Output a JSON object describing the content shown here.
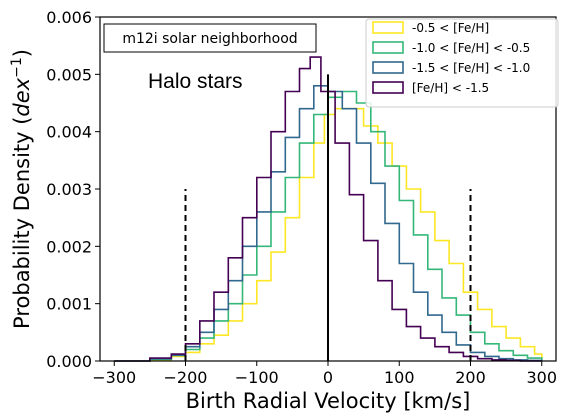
{
  "chart_data": {
    "type": "line",
    "xlabel": "Birth Radial Velocity [km/s]",
    "ylabel_prefix": "Probability Density (",
    "ylabel_unit": "dex",
    "ylabel_exp": "−1",
    "ylabel_suffix": ")",
    "xlim": [
      -320,
      320
    ],
    "ylim": [
      0,
      0.006
    ],
    "xticks": [
      -300,
      -200,
      -100,
      0,
      100,
      200,
      300
    ],
    "xtick_labels": [
      "−300",
      "−200",
      "−100",
      "0",
      "100",
      "200",
      "300"
    ],
    "yticks": [
      0,
      0.001,
      0.002,
      0.003,
      0.004,
      0.005,
      0.006
    ],
    "ytick_labels": [
      "0.000",
      "0.001",
      "0.002",
      "0.003",
      "0.004",
      "0.005",
      "0.006"
    ],
    "grid": false,
    "legend_position": "top-right",
    "annotations": {
      "boxed_label": "m12i solar neighborhood",
      "text_label": "Halo stars"
    },
    "vertical_lines": [
      {
        "x": 0,
        "y_top": 0.005,
        "style": "solid"
      },
      {
        "x": -200,
        "y_top": 0.003,
        "style": "dashed"
      },
      {
        "x": 200,
        "y_top": 0.003,
        "style": "dashed"
      }
    ],
    "series": [
      {
        "name": "-0.5 < [Fe/H]",
        "color": "#fde725",
        "points": [
          [
            -300,
            0
          ],
          [
            -250,
            2e-05
          ],
          [
            -220,
            8e-05
          ],
          [
            -200,
            0.00015
          ],
          [
            -180,
            0.0003
          ],
          [
            -160,
            0.00045
          ],
          [
            -140,
            0.0007
          ],
          [
            -120,
            0.001
          ],
          [
            -100,
            0.0014
          ],
          [
            -80,
            0.0019
          ],
          [
            -60,
            0.0025
          ],
          [
            -40,
            0.0032
          ],
          [
            -20,
            0.0038
          ],
          [
            -5,
            0.0043
          ],
          [
            10,
            0.0044
          ],
          [
            30,
            0.0044
          ],
          [
            50,
            0.0041
          ],
          [
            70,
            0.0038
          ],
          [
            90,
            0.0034
          ],
          [
            110,
            0.003
          ],
          [
            130,
            0.0026
          ],
          [
            150,
            0.0021
          ],
          [
            170,
            0.0017
          ],
          [
            190,
            0.0012
          ],
          [
            210,
            0.0009
          ],
          [
            230,
            0.0006
          ],
          [
            250,
            0.0004
          ],
          [
            270,
            0.00025
          ],
          [
            290,
            0.00012
          ],
          [
            300,
            5e-05
          ]
        ]
      },
      {
        "name": "-1.0 < [Fe/H] < -0.5",
        "color": "#35b779",
        "points": [
          [
            -300,
            0
          ],
          [
            -250,
            3e-05
          ],
          [
            -220,
            0.0001
          ],
          [
            -200,
            0.0002
          ],
          [
            -180,
            0.0004
          ],
          [
            -160,
            0.0007
          ],
          [
            -140,
            0.001
          ],
          [
            -120,
            0.0015
          ],
          [
            -100,
            0.002
          ],
          [
            -80,
            0.0026
          ],
          [
            -60,
            0.0032
          ],
          [
            -40,
            0.0038
          ],
          [
            -20,
            0.0043
          ],
          [
            0,
            0.0046
          ],
          [
            20,
            0.0047
          ],
          [
            40,
            0.0045
          ],
          [
            60,
            0.004
          ],
          [
            80,
            0.0034
          ],
          [
            100,
            0.0028
          ],
          [
            120,
            0.0022
          ],
          [
            140,
            0.0016
          ],
          [
            160,
            0.0011
          ],
          [
            180,
            0.0008
          ],
          [
            200,
            0.0005
          ],
          [
            220,
            0.0003
          ],
          [
            240,
            0.00018
          ],
          [
            260,
            0.0001
          ],
          [
            280,
            5e-05
          ],
          [
            300,
            2e-05
          ]
        ]
      },
      {
        "name": "-1.5 < [Fe/H] < -1.0",
        "color": "#31688e",
        "points": [
          [
            -300,
            0
          ],
          [
            -250,
            4e-05
          ],
          [
            -220,
            0.0001
          ],
          [
            -200,
            0.00025
          ],
          [
            -180,
            0.0005
          ],
          [
            -160,
            0.0009
          ],
          [
            -140,
            0.0014
          ],
          [
            -120,
            0.002
          ],
          [
            -100,
            0.0026
          ],
          [
            -80,
            0.0033
          ],
          [
            -60,
            0.0039
          ],
          [
            -40,
            0.0044
          ],
          [
            -20,
            0.0048
          ],
          [
            0,
            0.0047
          ],
          [
            20,
            0.0044
          ],
          [
            40,
            0.0038
          ],
          [
            60,
            0.0031
          ],
          [
            80,
            0.0024
          ],
          [
            100,
            0.0017
          ],
          [
            120,
            0.0012
          ],
          [
            140,
            0.0008
          ],
          [
            160,
            0.0005
          ],
          [
            180,
            0.00028
          ],
          [
            200,
            0.00015
          ],
          [
            220,
            8e-05
          ],
          [
            240,
            4e-05
          ],
          [
            260,
            2e-05
          ],
          [
            280,
            1e-05
          ],
          [
            300,
            0
          ]
        ]
      },
      {
        "name": "[Fe/H] < -1.5",
        "color": "#440154",
        "points": [
          [
            -300,
            0
          ],
          [
            -250,
            5e-05
          ],
          [
            -220,
            0.00012
          ],
          [
            -200,
            0.0003
          ],
          [
            -180,
            0.0007
          ],
          [
            -160,
            0.0012
          ],
          [
            -140,
            0.0018
          ],
          [
            -120,
            0.0025
          ],
          [
            -100,
            0.0032
          ],
          [
            -80,
            0.004
          ],
          [
            -60,
            0.0047
          ],
          [
            -40,
            0.0051
          ],
          [
            -25,
            0.0053
          ],
          [
            -10,
            0.0047
          ],
          [
            10,
            0.0038
          ],
          [
            30,
            0.0029
          ],
          [
            50,
            0.0021
          ],
          [
            70,
            0.0014
          ],
          [
            90,
            0.0009
          ],
          [
            110,
            0.0006
          ],
          [
            130,
            0.0004
          ],
          [
            150,
            0.00025
          ],
          [
            170,
            0.00015
          ],
          [
            190,
            8e-05
          ],
          [
            210,
            4e-05
          ],
          [
            230,
            2e-05
          ],
          [
            250,
            1e-05
          ],
          [
            270,
            0
          ],
          [
            300,
            0
          ]
        ]
      }
    ]
  }
}
